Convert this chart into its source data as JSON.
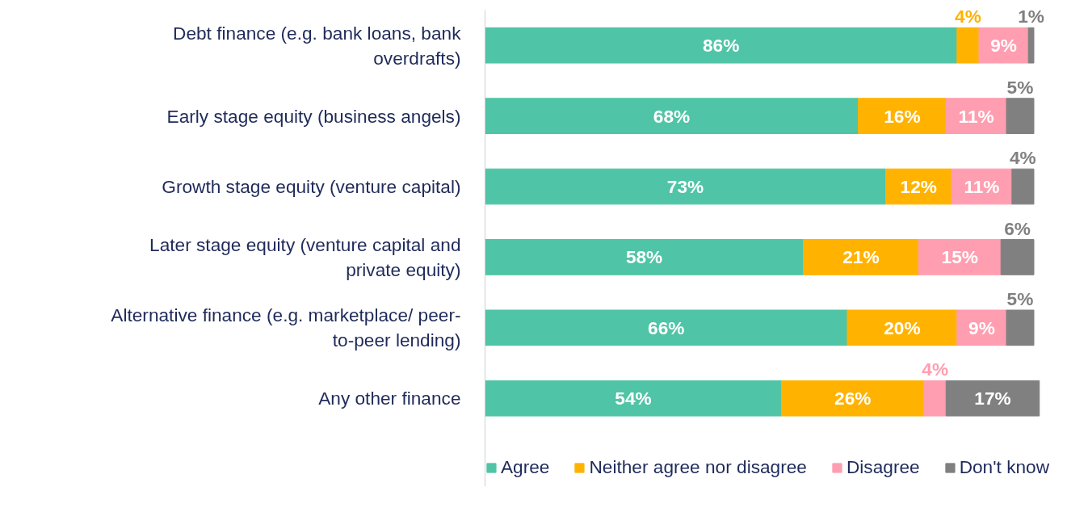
{
  "chart_data": {
    "type": "bar",
    "orientation": "horizontal",
    "stacked": true,
    "data_labels": true,
    "legend": "bottom",
    "grid": false,
    "categories": [
      "Debt finance (e.g. bank loans, bank overdrafts)",
      "Early stage equity (business angels)",
      "Growth stage equity (venture capital)",
      "Later stage equity (venture capital and private equity)",
      "Alternative finance (e.g. marketplace/ peer-to-peer lending)",
      "Any other finance"
    ],
    "series": [
      {
        "name": "Agree",
        "color": "#50c4a6",
        "values": [
          86,
          68,
          73,
          58,
          66,
          54
        ],
        "value_labels": [
          "86%",
          "68%",
          "73%",
          "58%",
          "66%",
          "54%"
        ]
      },
      {
        "name": "Neither agree nor disagree",
        "color": "#ffb300",
        "values": [
          4,
          16,
          12,
          21,
          20,
          26
        ],
        "value_labels": [
          "4%",
          "16%",
          "12%",
          "21%",
          "20%",
          "26%"
        ]
      },
      {
        "name": "Disagree",
        "color": "#ff9eb0",
        "values": [
          9,
          11,
          11,
          15,
          9,
          4
        ],
        "value_labels": [
          "9%",
          "11%",
          "11%",
          "15%",
          "9%",
          "4%"
        ]
      },
      {
        "name": "Don't know",
        "color": "#808080",
        "values": [
          1,
          5,
          4,
          6,
          5,
          17
        ],
        "value_labels": [
          "1%",
          "5%",
          "4%",
          "6%",
          "5%",
          "17%"
        ]
      }
    ]
  }
}
